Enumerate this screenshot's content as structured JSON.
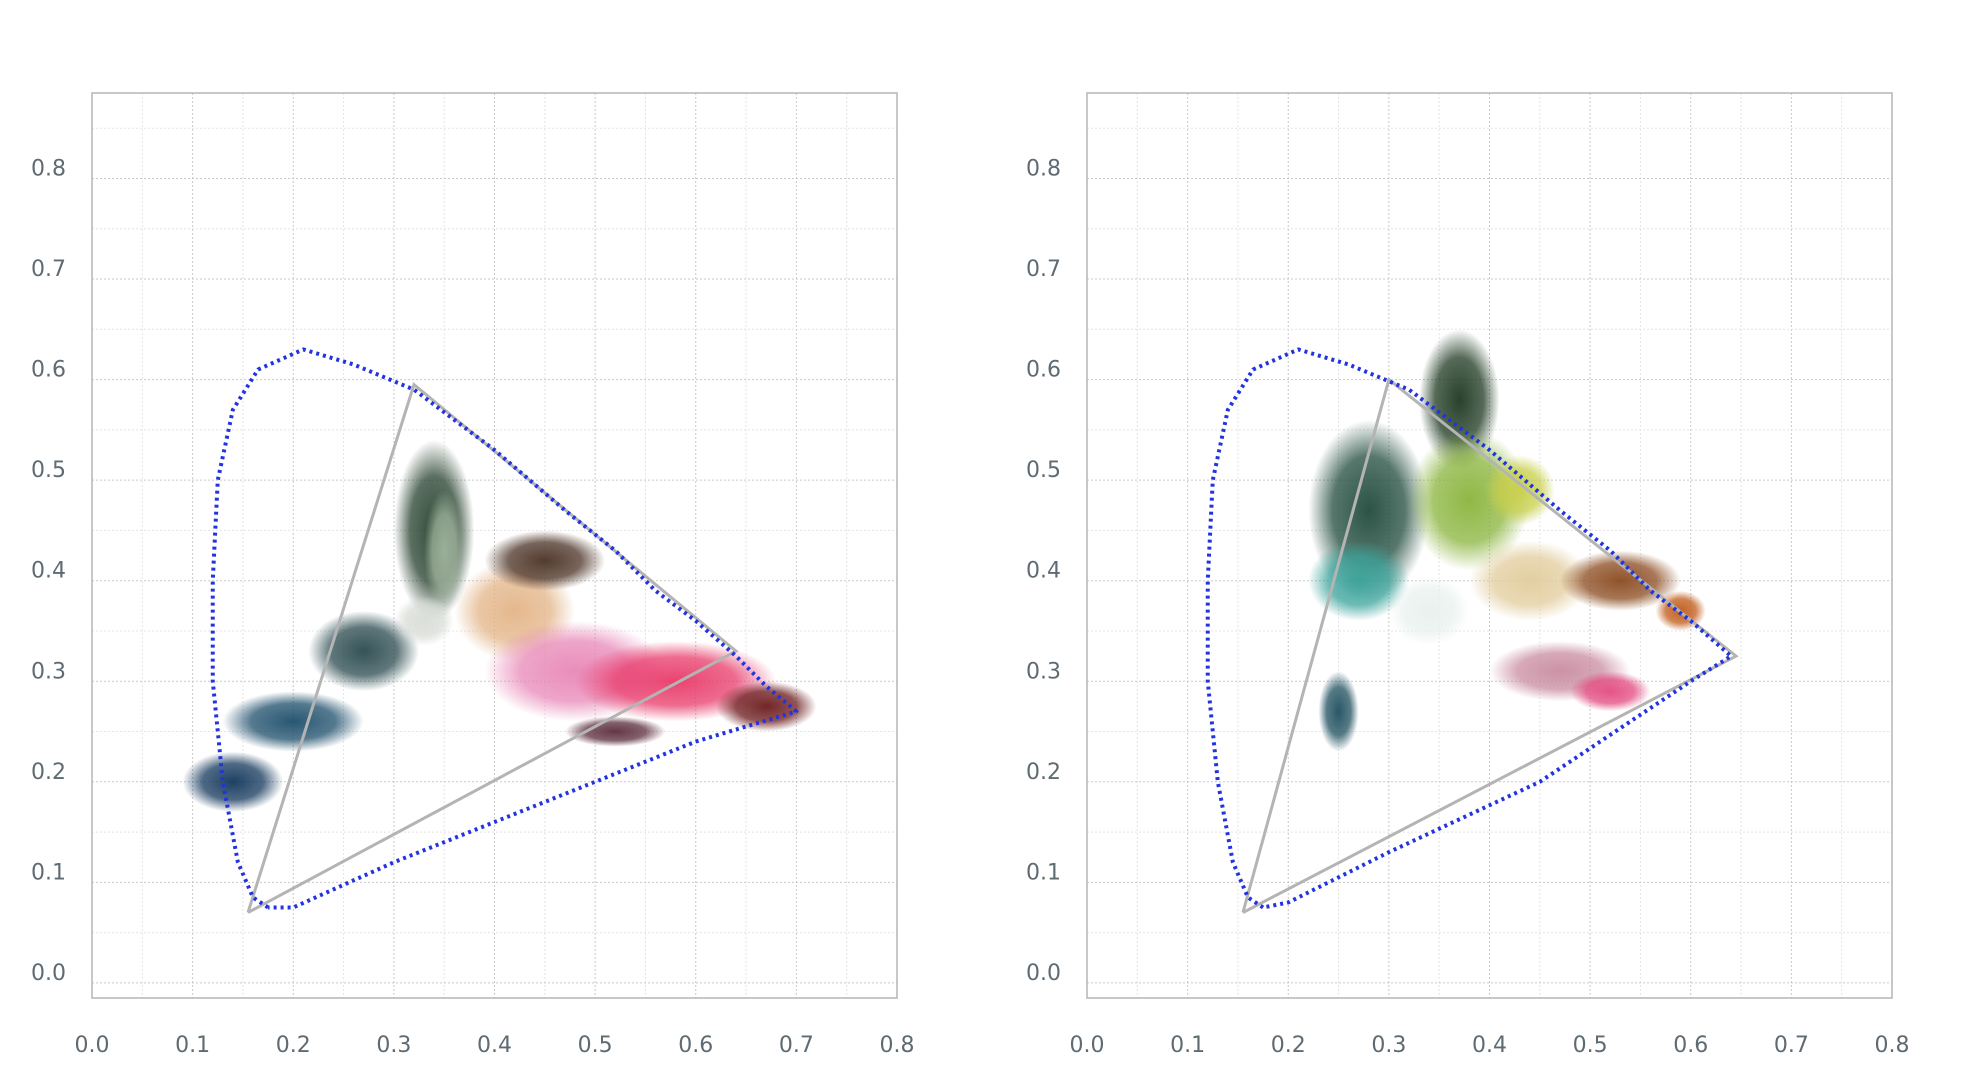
{
  "chart_data": [
    {
      "type": "scatter",
      "title": "",
      "xlabel": "",
      "ylabel": "",
      "xlim": [
        0.0,
        0.8
      ],
      "ylim": [
        -0.015,
        0.885
      ],
      "x_ticks": [
        "0.0",
        "0.1",
        "0.2",
        "0.3",
        "0.4",
        "0.5",
        "0.6",
        "0.7",
        "0.8"
      ],
      "y_ticks": [
        "0.0",
        "0.1",
        "0.2",
        "0.3",
        "0.4",
        "0.5",
        "0.6",
        "0.7",
        "0.8"
      ],
      "grid": true,
      "series": [
        {
          "kind": "spectral-locus",
          "style": "dotted",
          "color": "#2233e0",
          "points": [
            [
              0.175,
              0.075
            ],
            [
              0.16,
              0.085
            ],
            [
              0.145,
              0.12
            ],
            [
              0.13,
              0.2
            ],
            [
              0.12,
              0.3
            ],
            [
              0.12,
              0.4
            ],
            [
              0.125,
              0.5
            ],
            [
              0.14,
              0.57
            ],
            [
              0.165,
              0.61
            ],
            [
              0.21,
              0.63
            ],
            [
              0.26,
              0.615
            ],
            [
              0.32,
              0.59
            ],
            [
              0.4,
              0.53
            ],
            [
              0.47,
              0.47
            ],
            [
              0.52,
              0.43
            ],
            [
              0.56,
              0.39
            ],
            [
              0.6,
              0.36
            ],
            [
              0.64,
              0.325
            ],
            [
              0.67,
              0.295
            ],
            [
              0.7,
              0.27
            ],
            [
              0.6,
              0.24
            ],
            [
              0.45,
              0.18
            ],
            [
              0.3,
              0.12
            ],
            [
              0.2,
              0.075
            ],
            [
              0.175,
              0.075
            ]
          ]
        },
        {
          "kind": "gamut-triangle",
          "color": "#b4b4b4",
          "points": [
            [
              0.155,
              0.07
            ],
            [
              0.32,
              0.595
            ],
            [
              0.64,
              0.33
            ],
            [
              0.155,
              0.07
            ]
          ]
        },
        {
          "kind": "pixel-cloud",
          "blobs": [
            {
              "x": 0.14,
              "y": 0.2,
              "rx": 0.05,
              "ry": 0.03,
              "color": "#13375b"
            },
            {
              "x": 0.2,
              "y": 0.26,
              "rx": 0.07,
              "ry": 0.03,
              "color": "#1d4e6b"
            },
            {
              "x": 0.27,
              "y": 0.33,
              "rx": 0.055,
              "ry": 0.04,
              "color": "#2a4a4f"
            },
            {
              "x": 0.34,
              "y": 0.45,
              "rx": 0.04,
              "ry": 0.09,
              "color": "#26402d"
            },
            {
              "x": 0.35,
              "y": 0.43,
              "rx": 0.02,
              "ry": 0.06,
              "color": "#9fb39c"
            },
            {
              "x": 0.33,
              "y": 0.36,
              "rx": 0.03,
              "ry": 0.025,
              "color": "#d8dcd6"
            },
            {
              "x": 0.42,
              "y": 0.37,
              "rx": 0.06,
              "ry": 0.05,
              "color": "#e3b487"
            },
            {
              "x": 0.45,
              "y": 0.42,
              "rx": 0.06,
              "ry": 0.03,
              "color": "#4a3124"
            },
            {
              "x": 0.48,
              "y": 0.31,
              "rx": 0.09,
              "ry": 0.05,
              "color": "#e887b7"
            },
            {
              "x": 0.58,
              "y": 0.3,
              "rx": 0.1,
              "ry": 0.04,
              "color": "#e83a69"
            },
            {
              "x": 0.67,
              "y": 0.275,
              "rx": 0.05,
              "ry": 0.025,
              "color": "#6b1a1c"
            },
            {
              "x": 0.52,
              "y": 0.25,
              "rx": 0.05,
              "ry": 0.015,
              "color": "#5b2d3d"
            }
          ]
        }
      ]
    },
    {
      "type": "scatter",
      "title": "",
      "xlabel": "",
      "ylabel": "",
      "xlim": [
        0.0,
        0.8
      ],
      "ylim": [
        -0.015,
        0.885
      ],
      "x_ticks": [
        "0.0",
        "0.1",
        "0.2",
        "0.3",
        "0.4",
        "0.5",
        "0.6",
        "0.7",
        "0.8"
      ],
      "y_ticks": [
        "0.0",
        "0.1",
        "0.2",
        "0.3",
        "0.4",
        "0.5",
        "0.6",
        "0.7",
        "0.8"
      ],
      "grid": true,
      "series": [
        {
          "kind": "spectral-locus",
          "style": "dotted",
          "color": "#2233e0",
          "points": [
            [
              0.175,
              0.075
            ],
            [
              0.16,
              0.085
            ],
            [
              0.145,
              0.12
            ],
            [
              0.13,
              0.2
            ],
            [
              0.12,
              0.3
            ],
            [
              0.12,
              0.4
            ],
            [
              0.125,
              0.5
            ],
            [
              0.14,
              0.57
            ],
            [
              0.165,
              0.61
            ],
            [
              0.21,
              0.63
            ],
            [
              0.26,
              0.615
            ],
            [
              0.32,
              0.59
            ],
            [
              0.4,
              0.53
            ],
            [
              0.47,
              0.47
            ],
            [
              0.52,
              0.43
            ],
            [
              0.56,
              0.39
            ],
            [
              0.6,
              0.36
            ],
            [
              0.64,
              0.325
            ],
            [
              0.6,
              0.3
            ],
            [
              0.45,
              0.2
            ],
            [
              0.3,
              0.13
            ],
            [
              0.2,
              0.08
            ],
            [
              0.175,
              0.075
            ]
          ]
        },
        {
          "kind": "gamut-triangle",
          "color": "#b4b4b4",
          "points": [
            [
              0.155,
              0.07
            ],
            [
              0.3,
              0.6
            ],
            [
              0.645,
              0.325
            ],
            [
              0.155,
              0.07
            ]
          ]
        },
        {
          "kind": "pixel-cloud",
          "blobs": [
            {
              "x": 0.37,
              "y": 0.58,
              "rx": 0.04,
              "ry": 0.07,
              "color": "#1d3820"
            },
            {
              "x": 0.28,
              "y": 0.47,
              "rx": 0.06,
              "ry": 0.09,
              "color": "#1f4a3c"
            },
            {
              "x": 0.38,
              "y": 0.48,
              "rx": 0.06,
              "ry": 0.07,
              "color": "#8ab43c"
            },
            {
              "x": 0.43,
              "y": 0.49,
              "rx": 0.035,
              "ry": 0.035,
              "color": "#c8cf4a"
            },
            {
              "x": 0.27,
              "y": 0.4,
              "rx": 0.05,
              "ry": 0.04,
              "color": "#3aa39b"
            },
            {
              "x": 0.34,
              "y": 0.37,
              "rx": 0.04,
              "ry": 0.035,
              "color": "#e8f1ee"
            },
            {
              "x": 0.44,
              "y": 0.4,
              "rx": 0.06,
              "ry": 0.04,
              "color": "#e2cc9c"
            },
            {
              "x": 0.53,
              "y": 0.4,
              "rx": 0.06,
              "ry": 0.03,
              "color": "#8a4a1e"
            },
            {
              "x": 0.59,
              "y": 0.37,
              "rx": 0.025,
              "ry": 0.02,
              "color": "#c05a18"
            },
            {
              "x": 0.47,
              "y": 0.31,
              "rx": 0.07,
              "ry": 0.03,
              "color": "#c98ca0"
            },
            {
              "x": 0.52,
              "y": 0.29,
              "rx": 0.04,
              "ry": 0.02,
              "color": "#e24a80"
            },
            {
              "x": 0.25,
              "y": 0.27,
              "rx": 0.02,
              "ry": 0.04,
              "color": "#1e4f5e"
            }
          ]
        }
      ]
    }
  ]
}
